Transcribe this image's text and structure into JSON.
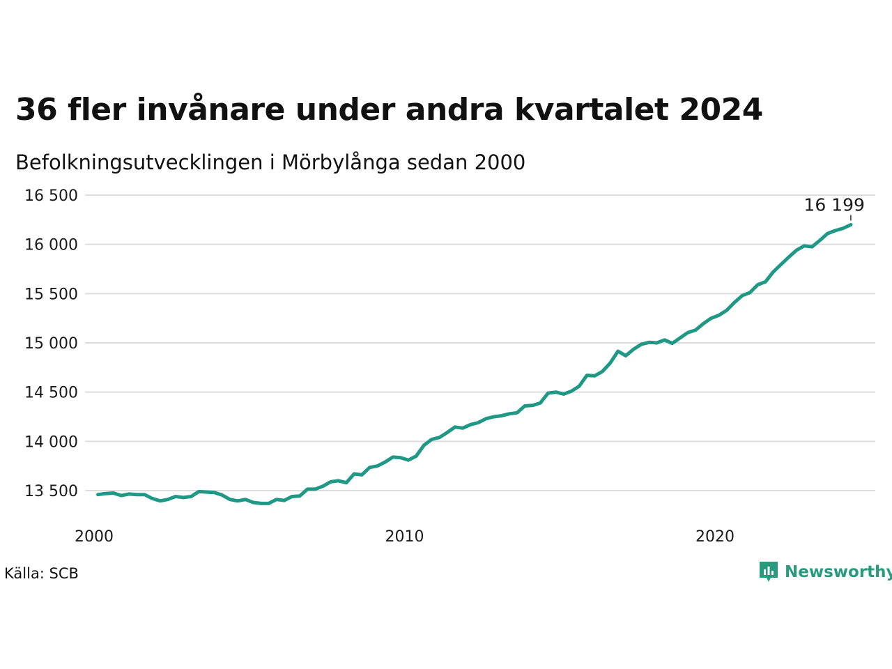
{
  "header": {
    "title": "36 fler invånare under andra kvartalet 2024",
    "subtitle": "Befolkningsutvecklingen i Mörbylånga sedan 2000"
  },
  "footer": {
    "source": "Källa: SCB",
    "brand": "Newsworthy"
  },
  "colors": {
    "line": "#1f9985",
    "grid": "#dcdcdc",
    "brand": "#2a9a7f"
  },
  "icons": {
    "brand_logo": "newsworthy-logo-icon"
  },
  "chart_data": {
    "type": "line",
    "title": "36 fler invånare under andra kvartalet 2024",
    "subtitle": "Befolkningsutvecklingen i Mörbylånga sedan 2000",
    "x_unit": "quarter",
    "x_start": "2000-Q1",
    "x_ticks": [
      "2000",
      "2010",
      "2020"
    ],
    "y_ticks": [
      "13 500",
      "14 000",
      "14 500",
      "15 000",
      "15 500",
      "16 000",
      "16 500"
    ],
    "ylim": [
      13200,
      16500
    ],
    "grid": true,
    "legend": "none",
    "end_label": "16 199",
    "values": [
      13460,
      13470,
      13475,
      13450,
      13465,
      13460,
      13460,
      13420,
      13395,
      13410,
      13440,
      13430,
      13440,
      13490,
      13485,
      13480,
      13455,
      13410,
      13395,
      13410,
      13380,
      13370,
      13370,
      13410,
      13400,
      13440,
      13445,
      13515,
      13515,
      13545,
      13590,
      13600,
      13580,
      13670,
      13660,
      13735,
      13750,
      13790,
      13840,
      13835,
      13810,
      13850,
      13960,
      14020,
      14040,
      14090,
      14145,
      14135,
      14170,
      14190,
      14230,
      14250,
      14260,
      14280,
      14290,
      14360,
      14365,
      14390,
      14490,
      14500,
      14480,
      14510,
      14560,
      14670,
      14665,
      14710,
      14795,
      14915,
      14870,
      14935,
      14985,
      15005,
      15000,
      15030,
      14995,
      15050,
      15105,
      15130,
      15195,
      15250,
      15280,
      15330,
      15410,
      15480,
      15510,
      15590,
      15620,
      15720,
      15795,
      15870,
      15940,
      15985,
      15975,
      16040,
      16110,
      16140,
      16163,
      16199
    ]
  }
}
